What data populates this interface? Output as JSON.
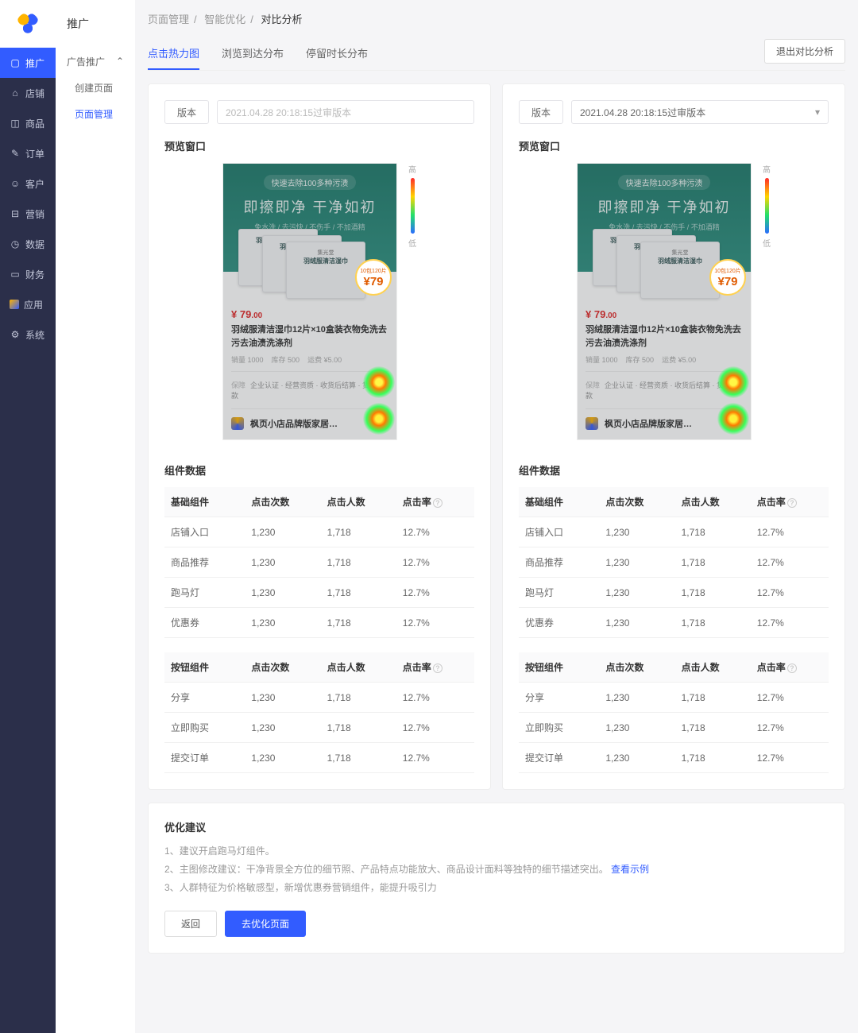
{
  "rail": {
    "items": [
      {
        "label": "推广",
        "icon": "▢"
      },
      {
        "label": "店铺",
        "icon": "⌂"
      },
      {
        "label": "商品",
        "icon": "◫"
      },
      {
        "label": "订单",
        "icon": "✎"
      },
      {
        "label": "客户",
        "icon": "☺"
      },
      {
        "label": "营销",
        "icon": "⊟"
      },
      {
        "label": "数据",
        "icon": "◷"
      },
      {
        "label": "财务",
        "icon": "▭"
      },
      {
        "label": "应用",
        "icon": ""
      },
      {
        "label": "系统",
        "icon": "⚙"
      }
    ]
  },
  "sidebar": {
    "header": "推广",
    "group": "广告推广",
    "links": [
      {
        "label": "创建页面"
      },
      {
        "label": "页面管理"
      }
    ]
  },
  "breadcrumb": {
    "a": "页面管理",
    "b": "智能优化",
    "c": "对比分析"
  },
  "tabs": {
    "t1": "点击热力图",
    "t2": "浏览到达分布",
    "t3": "停留时长分布"
  },
  "exit_label": "退出对比分析",
  "version_label": "版本",
  "version_value": "2021.04.28 20:18:15过审版本",
  "preview_title": "预览窗口",
  "legend": {
    "high": "高",
    "low": "低"
  },
  "product": {
    "hero_badge": "快速去除100多种污渍",
    "hero_title": "即擦即净 干净如初",
    "hero_sub": "免水洗 / 去污快 / 不伤手 / 不加酒精",
    "pack_brand": "集光堂",
    "pack_name": "羽绒服清洁湿巾",
    "bubble_top": "10包120片",
    "bubble_price": "79",
    "price_main": "79",
    "price_dec": ".00",
    "currency": "¥",
    "name": "羽绒服清洁湿巾12片×10盒装衣物免洗去污去油渍洗涤剂",
    "meta_sales": "销量 1000",
    "meta_stock": "库存 500",
    "meta_ship": "运费 ¥5.00",
    "guarantee_lbl": "保障",
    "guarantee_txt": "企业认证 · 经营资质 · 收货后结算 · 货到付款",
    "brand_line": "枫页小店品牌版家居…"
  },
  "data_title": "组件数据",
  "table_basic": {
    "headers": {
      "c1": "基础组件",
      "c2": "点击次数",
      "c3": "点击人数",
      "c4": "点击率"
    },
    "rows": [
      {
        "c1": "店铺入口",
        "c2": "1,230",
        "c3": "1,718",
        "c4": "12.7%"
      },
      {
        "c1": "商品推荐",
        "c2": "1,230",
        "c3": "1,718",
        "c4": "12.7%"
      },
      {
        "c1": "跑马灯",
        "c2": "1,230",
        "c3": "1,718",
        "c4": "12.7%"
      },
      {
        "c1": "优惠券",
        "c2": "1,230",
        "c3": "1,718",
        "c4": "12.7%"
      }
    ]
  },
  "table_button": {
    "headers": {
      "c1": "按钮组件",
      "c2": "点击次数",
      "c3": "点击人数",
      "c4": "点击率"
    },
    "rows": [
      {
        "c1": "分享",
        "c2": "1,230",
        "c3": "1,718",
        "c4": "12.7%"
      },
      {
        "c1": "立即购买",
        "c2": "1,230",
        "c3": "1,718",
        "c4": "12.7%"
      },
      {
        "c1": "提交订单",
        "c2": "1,230",
        "c3": "1,718",
        "c4": "12.7%"
      }
    ]
  },
  "suggest": {
    "title": "优化建议",
    "items": [
      "建议开启跑马灯组件。",
      "主图修改建议：干净背景全方位的细节照、产品特点功能放大、商品设计面料等独特的细节描述突出。",
      "人群特征为价格敏感型，新增优惠券营销组件，能提升吸引力"
    ],
    "link": "查看示例",
    "back": "返回",
    "go": "去优化页面"
  }
}
